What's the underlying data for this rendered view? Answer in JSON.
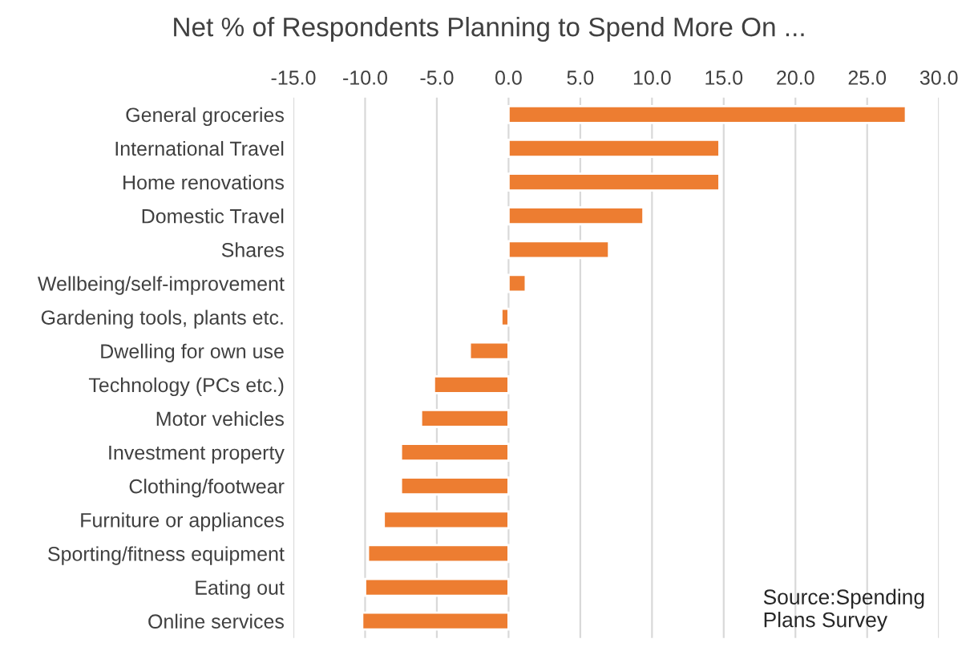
{
  "chart_data": {
    "type": "bar",
    "orientation": "horizontal",
    "title": "Net % of Respondents Planning to Spend More On ...",
    "categories": [
      "General groceries",
      "International Travel",
      "Home renovations",
      "Domestic Travel",
      "Shares",
      "Wellbeing/self-improvement",
      "Gardening tools, plants etc.",
      "Dwelling for own use",
      "Technology (PCs etc.)",
      "Motor vehicles",
      "Investment property",
      "Clothing/footwear",
      "Furniture or appliances",
      "Sporting/fitness equipment",
      "Eating out",
      "Online services"
    ],
    "values": [
      27.7,
      14.7,
      14.7,
      9.4,
      7.0,
      1.2,
      -0.5,
      -2.7,
      -5.2,
      -6.1,
      -7.5,
      -7.5,
      -8.7,
      -9.8,
      -10.0,
      -10.2
    ],
    "color": "#ed7d31",
    "xlim": [
      -15,
      30
    ],
    "xticks": [
      {
        "value": -15,
        "label": "-15.0"
      },
      {
        "value": -10,
        "label": "-10.0"
      },
      {
        "value": -5,
        "label": "-5.0"
      },
      {
        "value": 0,
        "label": "0.0"
      },
      {
        "value": 5,
        "label": "5.0"
      },
      {
        "value": 10,
        "label": "10.0"
      },
      {
        "value": 15,
        "label": "15.0"
      },
      {
        "value": 20,
        "label": "20.0"
      },
      {
        "value": 25,
        "label": "25.0"
      },
      {
        "value": 30,
        "label": "30.0"
      }
    ],
    "grid": "x",
    "legend": false,
    "annotations": [
      "Source:Spending Plans Survey"
    ]
  }
}
